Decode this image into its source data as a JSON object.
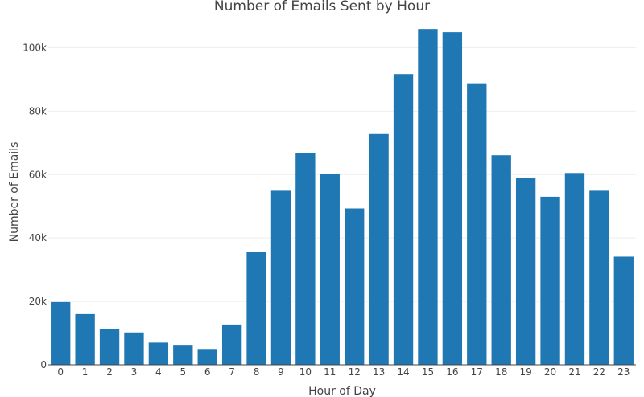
{
  "chart_data": {
    "type": "bar",
    "title": "Number of Emails Sent by Hour",
    "xlabel": "Hour of Day",
    "ylabel": "Number of Emails",
    "categories": [
      "0",
      "1",
      "2",
      "3",
      "4",
      "5",
      "6",
      "7",
      "8",
      "9",
      "10",
      "11",
      "12",
      "13",
      "14",
      "15",
      "16",
      "17",
      "18",
      "19",
      "20",
      "21",
      "22",
      "23"
    ],
    "values": [
      19800,
      16000,
      11200,
      10200,
      7000,
      6300,
      5000,
      12700,
      35600,
      54900,
      66700,
      60300,
      49300,
      72800,
      91700,
      105900,
      104900,
      88800,
      66100,
      58900,
      53000,
      60500,
      54900,
      34100
    ],
    "ylim": [
      0,
      110000
    ],
    "yticks": [
      0,
      20000,
      40000,
      60000,
      80000,
      100000
    ],
    "ytick_labels": [
      "0",
      "20k",
      "40k",
      "60k",
      "80k",
      "100k"
    ],
    "bar_color": "#1f77b4",
    "grid": true,
    "legend": false
  }
}
